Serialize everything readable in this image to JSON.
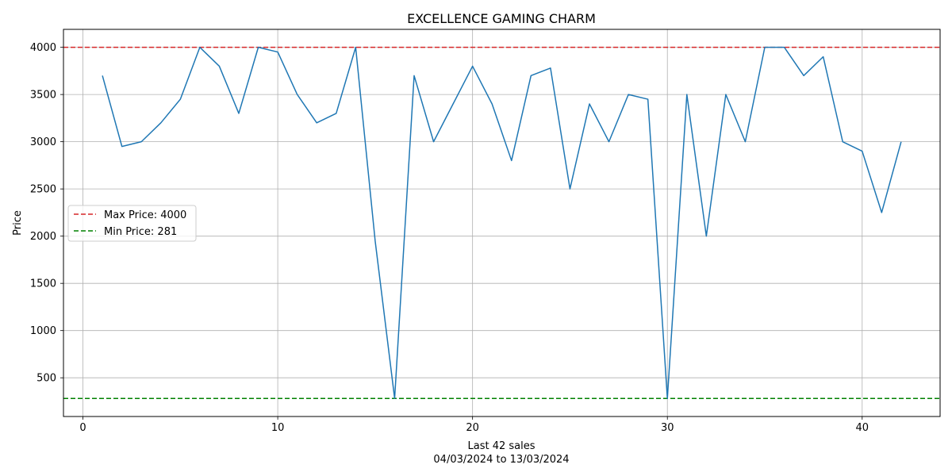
{
  "chart_data": {
    "type": "line",
    "title": "EXCELLENCE GAMING CHARM",
    "xlabel": "Last 42 sales",
    "xlabel_sub": "04/03/2024 to 13/03/2024",
    "ylabel": "Price",
    "xlim": [
      -1,
      44
    ],
    "ylim": [
      90,
      4190
    ],
    "xticks": [
      0,
      10,
      20,
      30,
      40
    ],
    "yticks": [
      500,
      1000,
      1500,
      2000,
      2500,
      3000,
      3500,
      4000
    ],
    "grid": true,
    "legend_position": "center-left",
    "series": [
      {
        "color": "#1f77b4",
        "x": [
          1,
          2,
          3,
          4,
          5,
          6,
          7,
          8,
          9,
          10,
          11,
          12,
          13,
          14,
          15,
          16,
          17,
          18,
          19,
          20,
          21,
          22,
          23,
          24,
          25,
          26,
          27,
          28,
          29,
          30,
          31,
          32,
          33,
          34,
          35,
          36,
          37,
          38,
          39,
          40,
          41,
          42
        ],
        "y": [
          3700,
          2950,
          3000,
          3200,
          3450,
          4000,
          3800,
          3300,
          4000,
          3950,
          3500,
          3200,
          3300,
          4000,
          1950,
          281,
          3700,
          3000,
          3400,
          3800,
          3400,
          2800,
          3700,
          3780,
          2500,
          3400,
          3000,
          3500,
          3450,
          281,
          3500,
          2000,
          3500,
          3000,
          4000,
          4000,
          3700,
          3900,
          3000,
          2900,
          2250,
          3000
        ]
      }
    ],
    "reference_lines": [
      {
        "name": "Max Price: 4000",
        "value": 4000,
        "color": "#d62728",
        "style": "dashed"
      },
      {
        "name": "Min Price: 281",
        "value": 281,
        "color": "#008000",
        "style": "dashed"
      }
    ]
  }
}
